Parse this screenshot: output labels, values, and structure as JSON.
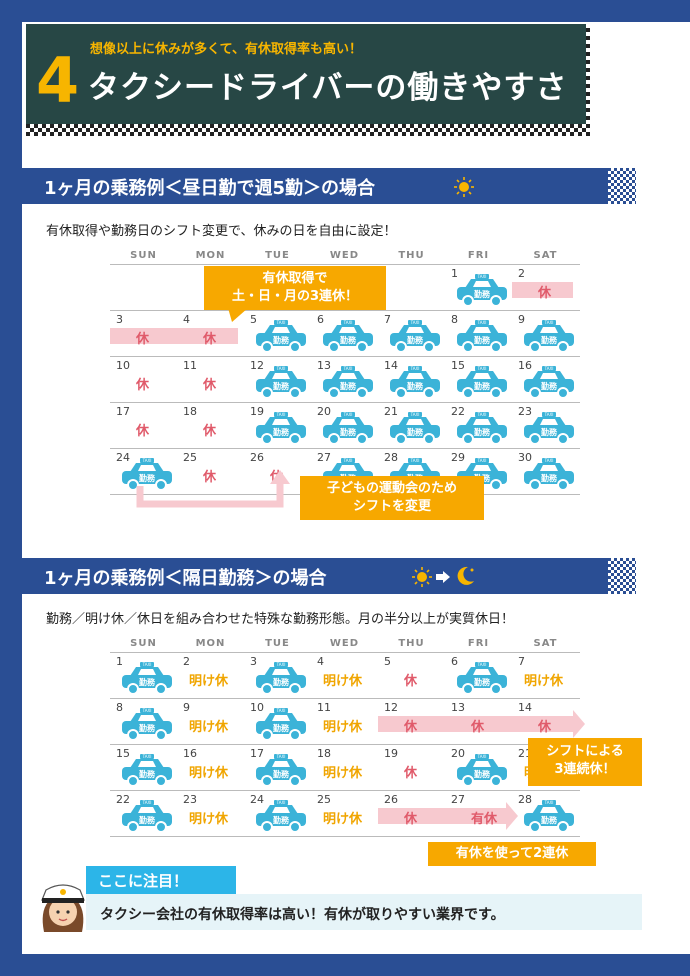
{
  "header": {
    "number": "4",
    "subtitle": "想像以上に休みが多くて、有休取得率も高い！",
    "title": "タクシードライバーの働きやすさ"
  },
  "section1": {
    "title": "1ヶ月の乗務例＜昼日勤で週5勤＞の場合",
    "description": "有休取得や勤務日のシフト変更で、休みの日を自由に設定！",
    "callout_top": "有休取得で\n土・日・月の3連休！",
    "callout_bottom": "子どもの運動会のため\nシフトを変更"
  },
  "section2": {
    "title": "1ヶ月の乗務例＜隔日勤務＞の場合",
    "description": "勤務／明け休／休日を組み合わせた特殊な勤務形態。月の半分以上が実質休日！",
    "callout_shift": "シフトによる\n3連続休！",
    "callout_paid": "有休を使って2連休"
  },
  "weekdays": [
    "SUN",
    "MON",
    "TUE",
    "WED",
    "THU",
    "FRI",
    "SAT"
  ],
  "labels": {
    "work": "勤務",
    "off": "休",
    "after": "明け休",
    "paid": "有休",
    "taxi": "TAXI"
  },
  "calendar1": [
    [
      "",
      "",
      "",
      "",
      "",
      "1",
      "2"
    ],
    [
      "3",
      "4",
      "5",
      "6",
      "7",
      "8",
      "9"
    ],
    [
      "10",
      "11",
      "12",
      "13",
      "14",
      "15",
      "16"
    ],
    [
      "17",
      "18",
      "19",
      "20",
      "21",
      "22",
      "23"
    ],
    [
      "24",
      "25",
      "26",
      "27",
      "28",
      "29",
      "30"
    ]
  ],
  "calendar1_types": [
    [
      "",
      "",
      "",
      "",
      "",
      "work",
      "off"
    ],
    [
      "off",
      "off",
      "work",
      "work",
      "work",
      "work",
      "work"
    ],
    [
      "off",
      "off",
      "work",
      "work",
      "work",
      "work",
      "work"
    ],
    [
      "off",
      "off",
      "work",
      "work",
      "work",
      "work",
      "work"
    ],
    [
      "work",
      "off",
      "off",
      "work",
      "work",
      "work",
      "work"
    ]
  ],
  "calendar2": [
    [
      "1",
      "2",
      "3",
      "4",
      "5",
      "6",
      "7"
    ],
    [
      "8",
      "9",
      "10",
      "11",
      "12",
      "13",
      "14"
    ],
    [
      "15",
      "16",
      "17",
      "18",
      "19",
      "20",
      "21"
    ],
    [
      "22",
      "23",
      "24",
      "25",
      "26",
      "27",
      "28"
    ]
  ],
  "calendar2_types": [
    [
      "work",
      "after",
      "work",
      "after",
      "off",
      "work",
      "after"
    ],
    [
      "work",
      "after",
      "work",
      "after",
      "off",
      "off",
      "off"
    ],
    [
      "work",
      "after",
      "work",
      "after",
      "off",
      "work",
      "after"
    ],
    [
      "work",
      "after",
      "work",
      "after",
      "off",
      "paid",
      "work"
    ]
  ],
  "note": {
    "heading": "ここに注目！",
    "text": "タクシー会社の有休取得率は高い！有休が取りやすい業界です。"
  },
  "colors": {
    "navy": "#2a4e94",
    "dark_green": "#274745",
    "orange": "#f7a800",
    "cyan": "#2cb5e8",
    "pink": "#e05a6a"
  }
}
